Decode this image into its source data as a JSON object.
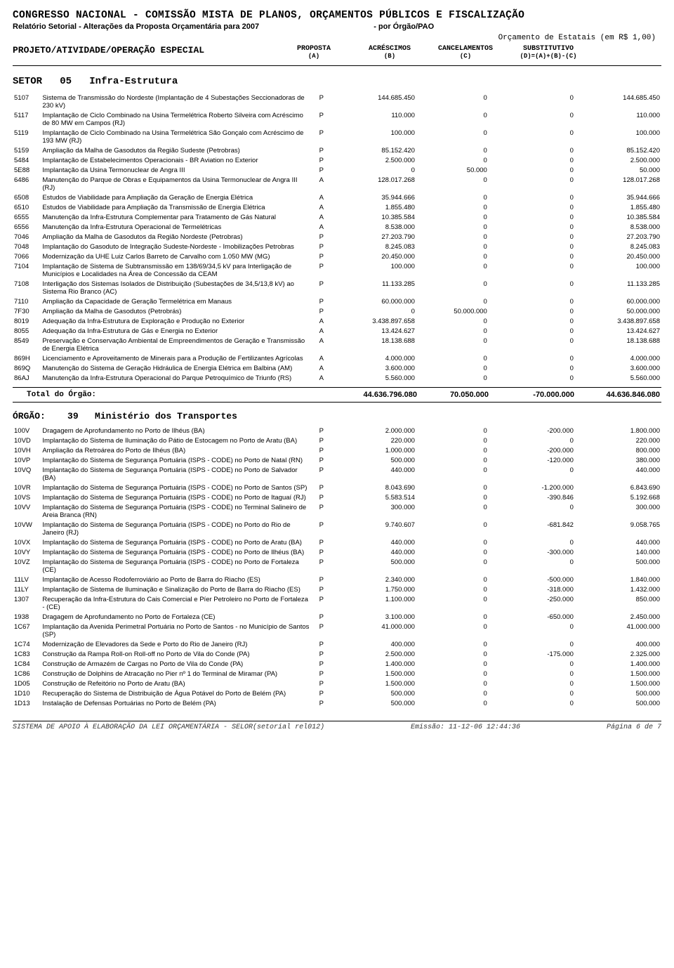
{
  "header": {
    "title": "CONGRESSO NACIONAL - COMISSÃO MISTA DE PLANOS, ORÇAMENTOS PÚBLICOS E FISCALIZAÇÃO",
    "subtitle_left": "Relatório Setorial - Alterações da Proposta Orçamentária para 2007",
    "subtitle_right": "- por Órgão/PAO",
    "budget_note": "Orçamento de Estatais (em R$ 1,00)",
    "project_label": "PROJETO/ATIVIDADE/OPERAÇÃO ESPECIAL",
    "cols": {
      "a": "PROPOSTA",
      "a_sub": "(A)",
      "b": "ACRÉSCIMOS",
      "b_sub": "(B)",
      "c": "CANCELAMENTOS",
      "c_sub": "(C)",
      "d": "SUBSTITUTIVO",
      "d_sub": "(D)=(A)+(B)-(C)"
    }
  },
  "sector": {
    "prefix": "SETOR",
    "code": "05",
    "name": "Infra-Estrutura"
  },
  "rows1": [
    {
      "code": "5107",
      "desc": "Sistema de Transmissão do Nordeste (Implantação de 4 Subestações Seccionadoras de 230 kV)",
      "t": "P",
      "a": "144.685.450",
      "b": "0",
      "c": "0",
      "d": "144.685.450"
    },
    {
      "code": "5117",
      "desc": "Implantação de Ciclo Combinado na Usina Termelétrica Roberto Silveira com Acréscimo de 80 MW em Campos (RJ)",
      "t": "P",
      "a": "110.000",
      "b": "0",
      "c": "0",
      "d": "110.000"
    },
    {
      "code": "5119",
      "desc": "Implantação de Ciclo Combinado na Usina Termelétrica São Gonçalo com Acréscimo de 193 MW (RJ)",
      "t": "P",
      "a": "100.000",
      "b": "0",
      "c": "0",
      "d": "100.000"
    },
    {
      "code": "5159",
      "desc": "Ampliação da Malha de Gasodutos da Região Sudeste (Petrobras)",
      "t": "P",
      "a": "85.152.420",
      "b": "0",
      "c": "0",
      "d": "85.152.420"
    },
    {
      "code": "5484",
      "desc": "Implantação de Estabelecimentos Operacionais - BR Aviation no Exterior",
      "t": "P",
      "a": "2.500.000",
      "b": "0",
      "c": "0",
      "d": "2.500.000"
    },
    {
      "code": "5E88",
      "desc": "Implantação da Usina Termonuclear de Angra III",
      "t": "P",
      "a": "0",
      "b": "50.000",
      "c": "0",
      "d": "50.000"
    },
    {
      "code": "6486",
      "desc": "Manutenção do Parque de Obras e Equipamentos da Usina Termonuclear de Angra III (RJ)",
      "t": "A",
      "a": "128.017.268",
      "b": "0",
      "c": "0",
      "d": "128.017.268"
    },
    {
      "code": "6508",
      "desc": "Estudos de Viabilidade para Ampliação da Geração de Energia Elétrica",
      "t": "A",
      "a": "35.944.666",
      "b": "0",
      "c": "0",
      "d": "35.944.666"
    },
    {
      "code": "6510",
      "desc": "Estudos de Viabilidade para Ampliação da Transmissão de Energia Elétrica",
      "t": "A",
      "a": "1.855.480",
      "b": "0",
      "c": "0",
      "d": "1.855.480"
    },
    {
      "code": "6555",
      "desc": "Manutenção da Infra-Estrutura Complementar para Tratamento de Gás Natural",
      "t": "A",
      "a": "10.385.584",
      "b": "0",
      "c": "0",
      "d": "10.385.584"
    },
    {
      "code": "6556",
      "desc": "Manutenção da Infra-Estrutura Operacional de Termelétricas",
      "t": "A",
      "a": "8.538.000",
      "b": "0",
      "c": "0",
      "d": "8.538.000"
    },
    {
      "code": "7046",
      "desc": "Ampliação da Malha de Gasodutos da Região Nordeste (Petrobras)",
      "t": "P",
      "a": "27.203.790",
      "b": "0",
      "c": "0",
      "d": "27.203.790"
    },
    {
      "code": "7048",
      "desc": "Implantação do Gasoduto de Integração Sudeste-Nordeste - Imobilizações Petrobras",
      "t": "P",
      "a": "8.245.083",
      "b": "0",
      "c": "0",
      "d": "8.245.083"
    },
    {
      "code": "7066",
      "desc": "Modernização da UHE Luiz Carlos Barreto de Carvalho com 1.050 MW (MG)",
      "t": "P",
      "a": "20.450.000",
      "b": "0",
      "c": "0",
      "d": "20.450.000"
    },
    {
      "code": "7104",
      "desc": "Implantação de Sistema de Subtransmissão em 138/69/34,5 kV para Interligação de Municípios e Localidades na Área de Concessão da CEAM",
      "t": "P",
      "a": "100.000",
      "b": "0",
      "c": "0",
      "d": "100.000"
    },
    {
      "code": "7108",
      "desc": "Interligação dos Sistemas Isolados de Distribuição (Subestações de 34,5/13,8 kV) ao Sistema Rio Branco (AC)",
      "t": "P",
      "a": "11.133.285",
      "b": "0",
      "c": "0",
      "d": "11.133.285"
    },
    {
      "code": "7110",
      "desc": "Ampliação da Capacidade de Geração Termelétrica em Manaus",
      "t": "P",
      "a": "60.000.000",
      "b": "0",
      "c": "0",
      "d": "60.000.000"
    },
    {
      "code": "7F30",
      "desc": "Ampliação da Malha de Gasodutos (Petrobrás)",
      "t": "P",
      "a": "0",
      "b": "50.000.000",
      "c": "0",
      "d": "50.000.000"
    },
    {
      "code": "8019",
      "desc": "Adequação da Infra-Estrutura de Exploração e Produção no Exterior",
      "t": "A",
      "a": "3.438.897.658",
      "b": "0",
      "c": "0",
      "d": "3.438.897.658"
    },
    {
      "code": "8055",
      "desc": "Adequação da Infra-Estrutura de Gás e Energia no Exterior",
      "t": "A",
      "a": "13.424.627",
      "b": "0",
      "c": "0",
      "d": "13.424.627"
    },
    {
      "code": "8549",
      "desc": "Preservação e Conservação Ambiental de Empreendimentos de Geração e Transmissão de Energia Elétrica",
      "t": "A",
      "a": "18.138.688",
      "b": "0",
      "c": "0",
      "d": "18.138.688"
    },
    {
      "code": "869H",
      "desc": "Licenciamento e Aproveitamento de Minerais para a Produção de Fertilizantes Agrícolas",
      "t": "A",
      "a": "4.000.000",
      "b": "0",
      "c": "0",
      "d": "4.000.000"
    },
    {
      "code": "869Q",
      "desc": "Manutenção do Sistema de Geração Hidráulica de Energia Elétrica em Balbina (AM)",
      "t": "A",
      "a": "3.600.000",
      "b": "0",
      "c": "0",
      "d": "3.600.000"
    },
    {
      "code": "86AJ",
      "desc": "Manutenção da Infra-Estrutura Operacional do Parque Petroquímico de Triunfo (RS)",
      "t": "A",
      "a": "5.560.000",
      "b": "0",
      "c": "0",
      "d": "5.560.000"
    }
  ],
  "total1": {
    "label": "Total do Órgão:",
    "a": "44.636.796.080",
    "b": "70.050.000",
    "c": "-70.000.000",
    "d": "44.636.846.080"
  },
  "orgao2": {
    "prefix": "ÓRGÃO:",
    "code": "39",
    "name": "Ministério dos Transportes"
  },
  "rows2": [
    {
      "code": "100V",
      "desc": "Dragagem de Aprofundamento no Porto de Ilhéus (BA)",
      "t": "P",
      "a": "2.000.000",
      "b": "0",
      "c": "-200.000",
      "d": "1.800.000"
    },
    {
      "code": "10VD",
      "desc": "Implantação do Sistema de Iluminação do Pátio de Estocagem no Porto de Aratu (BA)",
      "t": "P",
      "a": "220.000",
      "b": "0",
      "c": "0",
      "d": "220.000"
    },
    {
      "code": "10VH",
      "desc": "Ampliação da Retroárea do Porto de Ilhéus (BA)",
      "t": "P",
      "a": "1.000.000",
      "b": "0",
      "c": "-200.000",
      "d": "800.000"
    },
    {
      "code": "10VP",
      "desc": "Implantação do Sistema de Segurança Portuária (ISPS - CODE) no Porto de Natal (RN)",
      "t": "P",
      "a": "500.000",
      "b": "0",
      "c": "-120.000",
      "d": "380.000"
    },
    {
      "code": "10VQ",
      "desc": "Implantação do Sistema de Segurança Portuária (ISPS - CODE) no Porto de Salvador (BA)",
      "t": "P",
      "a": "440.000",
      "b": "0",
      "c": "0",
      "d": "440.000"
    },
    {
      "code": "10VR",
      "desc": "Implantação do Sistema de Segurança Portuária (ISPS - CODE) no Porto de Santos (SP)",
      "t": "P",
      "a": "8.043.690",
      "b": "0",
      "c": "-1.200.000",
      "d": "6.843.690"
    },
    {
      "code": "10VS",
      "desc": "Implantação do Sistema de Segurança Portuária (ISPS - CODE) no Porto de Itaguaí (RJ)",
      "t": "P",
      "a": "5.583.514",
      "b": "0",
      "c": "-390.846",
      "d": "5.192.668"
    },
    {
      "code": "10VV",
      "desc": "Implantação do Sistema de Segurança Portuária (ISPS - CODE) no Terminal Salineiro de Areia Branca (RN)",
      "t": "P",
      "a": "300.000",
      "b": "0",
      "c": "0",
      "d": "300.000"
    },
    {
      "code": "10VW",
      "desc": "Implantação do Sistema de Segurança Portuária (ISPS - CODE) no Porto do Rio de Janeiro (RJ)",
      "t": "P",
      "a": "9.740.607",
      "b": "0",
      "c": "-681.842",
      "d": "9.058.765"
    },
    {
      "code": "10VX",
      "desc": "Implantação do Sistema de Segurança Portuária (ISPS - CODE) no Porto de Aratu (BA)",
      "t": "P",
      "a": "440.000",
      "b": "0",
      "c": "0",
      "d": "440.000"
    },
    {
      "code": "10VY",
      "desc": "Implantação do Sistema de Segurança Portuária (ISPS - CODE) no Porto de Ilhéus (BA)",
      "t": "P",
      "a": "440.000",
      "b": "0",
      "c": "-300.000",
      "d": "140.000"
    },
    {
      "code": "10VZ",
      "desc": "Implantação do Sistema de Segurança Portuária (ISPS - CODE) no Porto de Fortaleza (CE)",
      "t": "P",
      "a": "500.000",
      "b": "0",
      "c": "0",
      "d": "500.000"
    },
    {
      "code": "11LV",
      "desc": "Implantação de Acesso Rodoferroviário ao Porto de Barra do Riacho (ES)",
      "t": "P",
      "a": "2.340.000",
      "b": "0",
      "c": "-500.000",
      "d": "1.840.000"
    },
    {
      "code": "11LY",
      "desc": "Implantação de Sistema de Iluminação e Sinalização do Porto de Barra do Riacho (ES)",
      "t": "P",
      "a": "1.750.000",
      "b": "0",
      "c": "-318.000",
      "d": "1.432.000"
    },
    {
      "code": "1307",
      "desc": "Recuperação da Infra-Estrutura do Cais Comercial e Píer Petroleiro no Porto de Fortaleza - (CE)",
      "t": "P",
      "a": "1.100.000",
      "b": "0",
      "c": "-250.000",
      "d": "850.000"
    },
    {
      "code": "1938",
      "desc": "Dragagem de Aprofundamento no Porto de Fortaleza (CE)",
      "t": "P",
      "a": "3.100.000",
      "b": "0",
      "c": "-650.000",
      "d": "2.450.000"
    },
    {
      "code": "1C67",
      "desc": "Implantação da Avenida Perimetral Portuária no Porto de Santos - no Município de Santos (SP)",
      "t": "P",
      "a": "41.000.000",
      "b": "0",
      "c": "0",
      "d": "41.000.000"
    },
    {
      "code": "1C74",
      "desc": "Modernização de Elevadores da Sede e Porto do Rio de Janeiro (RJ)",
      "t": "P",
      "a": "400.000",
      "b": "0",
      "c": "0",
      "d": "400.000"
    },
    {
      "code": "1C83",
      "desc": "Construção da Rampa Roll-on Roll-off no Porto de Vila do Conde (PA)",
      "t": "P",
      "a": "2.500.000",
      "b": "0",
      "c": "-175.000",
      "d": "2.325.000"
    },
    {
      "code": "1C84",
      "desc": "Construção de Armazém de Cargas no Porto de Vila do Conde (PA)",
      "t": "P",
      "a": "1.400.000",
      "b": "0",
      "c": "0",
      "d": "1.400.000"
    },
    {
      "code": "1C86",
      "desc": "Construção de Dolphins de Atracação no Pier nº 1 do Terminal de Miramar (PA)",
      "t": "P",
      "a": "1.500.000",
      "b": "0",
      "c": "0",
      "d": "1.500.000"
    },
    {
      "code": "1D05",
      "desc": "Construção de Refeitório no Porto de Aratu (BA)",
      "t": "P",
      "a": "1.500.000",
      "b": "0",
      "c": "0",
      "d": "1.500.000"
    },
    {
      "code": "1D10",
      "desc": "Recuperação do Sistema de Distribuição de Água Potável do Porto de Belém (PA)",
      "t": "P",
      "a": "500.000",
      "b": "0",
      "c": "0",
      "d": "500.000"
    },
    {
      "code": "1D13",
      "desc": "Instalação de Defensas Portuárias no Porto de Belém (PA)",
      "t": "P",
      "a": "500.000",
      "b": "0",
      "c": "0",
      "d": "500.000"
    }
  ],
  "footer": {
    "left": "SISTEMA DE APOIO À ELABORAÇÃO DA LEI ORÇAMENTÁRIA - SELOR(setorial rel012)",
    "mid": "Emissão: 11-12-06 12:44:36",
    "right": "Página 6 de 7"
  }
}
